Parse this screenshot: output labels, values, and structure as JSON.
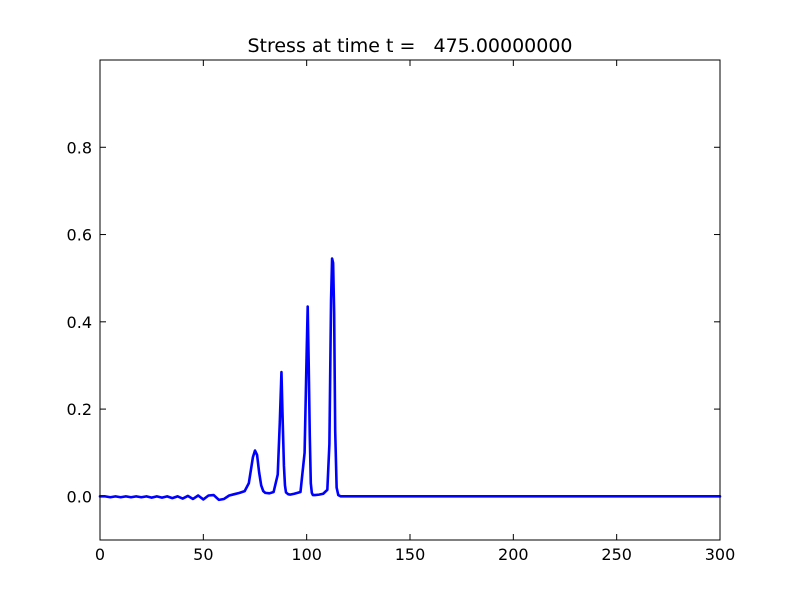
{
  "chart_data": {
    "type": "line",
    "title": "Stress at time t =   475.00000000",
    "xlabel": "",
    "ylabel": "",
    "xlim": [
      0,
      300
    ],
    "ylim": [
      -0.1,
      1.0
    ],
    "x_ticks": [
      0,
      50,
      100,
      150,
      200,
      250,
      300
    ],
    "x_tick_labels": [
      "0",
      "50",
      "100",
      "150",
      "200",
      "250",
      "300"
    ],
    "y_ticks": [
      0.0,
      0.2,
      0.4,
      0.6,
      0.8
    ],
    "y_tick_labels": [
      "0.0",
      "0.2",
      "0.4",
      "0.6",
      "0.8"
    ],
    "grid": false,
    "legend": "none",
    "series": [
      {
        "color": "#0000ff",
        "x": [
          0,
          2.5,
          5,
          7.5,
          10,
          12.5,
          15,
          17.5,
          20,
          22.5,
          25,
          27.5,
          30,
          32.5,
          35,
          37.5,
          40,
          42.5,
          45,
          47.5,
          50,
          52.5,
          55,
          57.5,
          60,
          62.5,
          65,
          67.5,
          70,
          72,
          73,
          74,
          75,
          76,
          77,
          78,
          79,
          80,
          82,
          84,
          86,
          87,
          87.8,
          88.3,
          89,
          89.5,
          90,
          91,
          92,
          94,
          97,
          99,
          100,
          100.5,
          101,
          101.5,
          102,
          102.5,
          103,
          104,
          106,
          108,
          110,
          111,
          111.8,
          112.3,
          112.8,
          113.3,
          113.8,
          114.5,
          115.3,
          116.5,
          120,
          150,
          200,
          250,
          300
        ],
        "y": [
          0,
          0,
          -0.002,
          0,
          -0.002,
          0,
          -0.002,
          0,
          -0.002,
          0,
          -0.003,
          0,
          -0.003,
          0,
          -0.004,
          0,
          -0.005,
          0.001,
          -0.006,
          0.002,
          -0.007,
          0.002,
          0.003,
          -0.008,
          -0.006,
          0.002,
          0.005,
          0.008,
          0.012,
          0.03,
          0.06,
          0.09,
          0.105,
          0.095,
          0.055,
          0.025,
          0.012,
          0.008,
          0.007,
          0.01,
          0.05,
          0.17,
          0.285,
          0.19,
          0.07,
          0.025,
          0.009,
          0.005,
          0.004,
          0.006,
          0.01,
          0.1,
          0.33,
          0.435,
          0.3,
          0.14,
          0.03,
          0.008,
          0.003,
          0.003,
          0.004,
          0.006,
          0.015,
          0.12,
          0.45,
          0.545,
          0.535,
          0.42,
          0.15,
          0.02,
          0.003,
          0,
          0,
          0,
          0,
          0,
          0
        ]
      }
    ]
  }
}
